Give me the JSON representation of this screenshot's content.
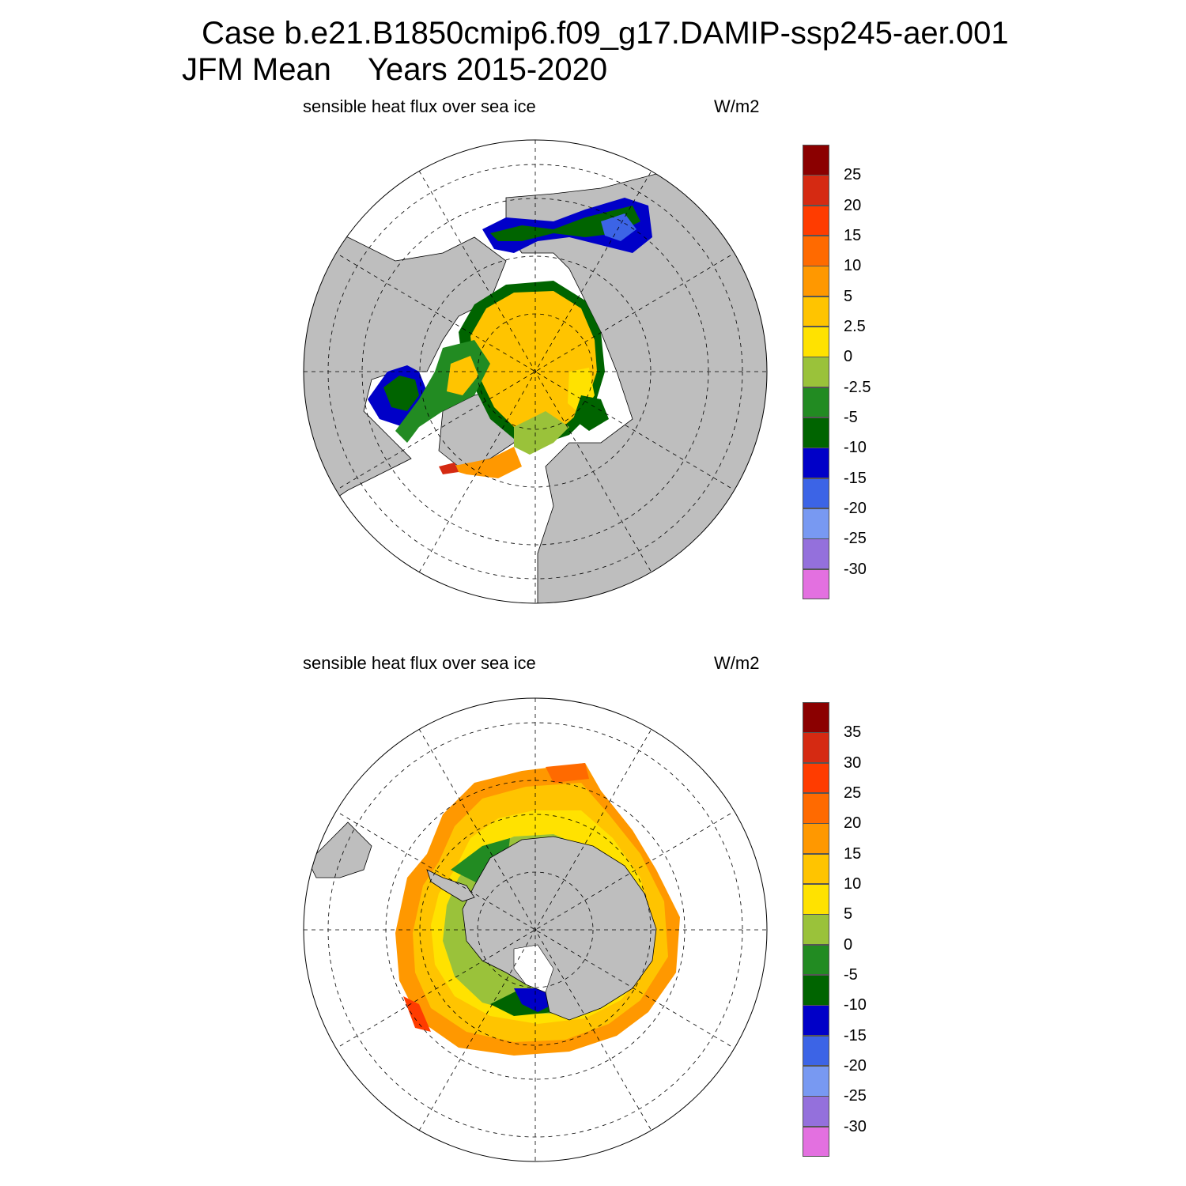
{
  "header": {
    "case_line": "Case b.e21.B1850cmip6.f09_g17.DAMIP-ssp245-aer.001",
    "season": "JFM Mean",
    "years": "Years 2015-2020"
  },
  "panels": [
    {
      "id": "north",
      "variable": "sensible heat flux over sea ice",
      "units": "W/m2",
      "hemisphere": "NH",
      "colorbar": {
        "labels": [
          "25",
          "20",
          "15",
          "10",
          "5",
          "2.5",
          "0",
          "-2.5",
          "-5",
          "-10",
          "-15",
          "-20",
          "-25",
          "-30"
        ],
        "colors": [
          "#8b0000",
          "#d52a12",
          "#ff3c00",
          "#ff6a00",
          "#ff9800",
          "#ffc400",
          "#ffe200",
          "#9ac23a",
          "#228b22",
          "#006400",
          "#0000c8",
          "#3c64e6",
          "#7899f2",
          "#9470dc",
          "#e370e0"
        ]
      }
    },
    {
      "id": "south",
      "variable": "sensible heat flux over sea ice",
      "units": "W/m2",
      "hemisphere": "SH",
      "colorbar": {
        "labels": [
          "35",
          "30",
          "25",
          "20",
          "15",
          "10",
          "5",
          "0",
          "-5",
          "-10",
          "-15",
          "-20",
          "-25",
          "-30"
        ],
        "colors": [
          "#8b0000",
          "#d52a12",
          "#ff3c00",
          "#ff6a00",
          "#ff9800",
          "#ffc400",
          "#ffe200",
          "#9ac23a",
          "#228b22",
          "#006400",
          "#0000c8",
          "#3c64e6",
          "#7899f2",
          "#9470dc",
          "#e370e0"
        ]
      }
    }
  ],
  "map_style": {
    "land_color": "#bebebe",
    "ocean_color": "#ffffff",
    "grid_line_style": "dashed"
  }
}
